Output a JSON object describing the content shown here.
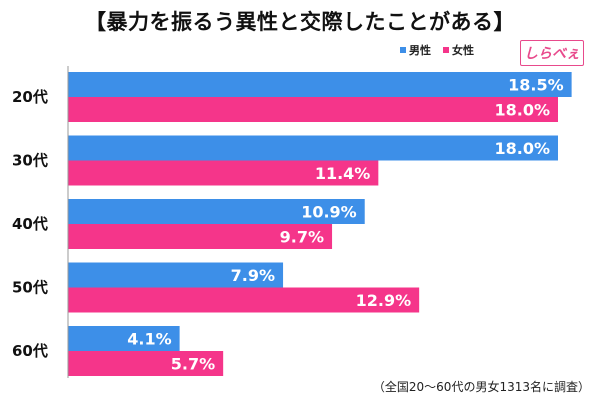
{
  "title": "【暴力を振るう異性と交際したことがある】",
  "legend": {
    "male": "男性",
    "female": "女性"
  },
  "logo_text": "しらべぇ",
  "footnote": "（全国20～60代の男女1313名に調査）",
  "colors": {
    "male": "#3d8fe8",
    "female": "#f5358a",
    "axis": "#999999"
  },
  "chart_data": {
    "type": "bar",
    "orientation": "horizontal",
    "categories": [
      "20代",
      "30代",
      "40代",
      "50代",
      "60代"
    ],
    "series": [
      {
        "name": "男性",
        "values": [
          18.5,
          18.0,
          10.9,
          7.9,
          4.1
        ],
        "labels": [
          "18.5%",
          "18.0%",
          "10.9%",
          "7.9%",
          "4.1%"
        ]
      },
      {
        "name": "女性",
        "values": [
          18.0,
          11.4,
          9.7,
          12.9,
          5.7
        ],
        "labels": [
          "18.0%",
          "11.4%",
          "9.7%",
          "12.9%",
          "5.7%"
        ]
      }
    ],
    "xlim": [
      0,
      20
    ],
    "grid": false,
    "legend_position": "top-right"
  }
}
